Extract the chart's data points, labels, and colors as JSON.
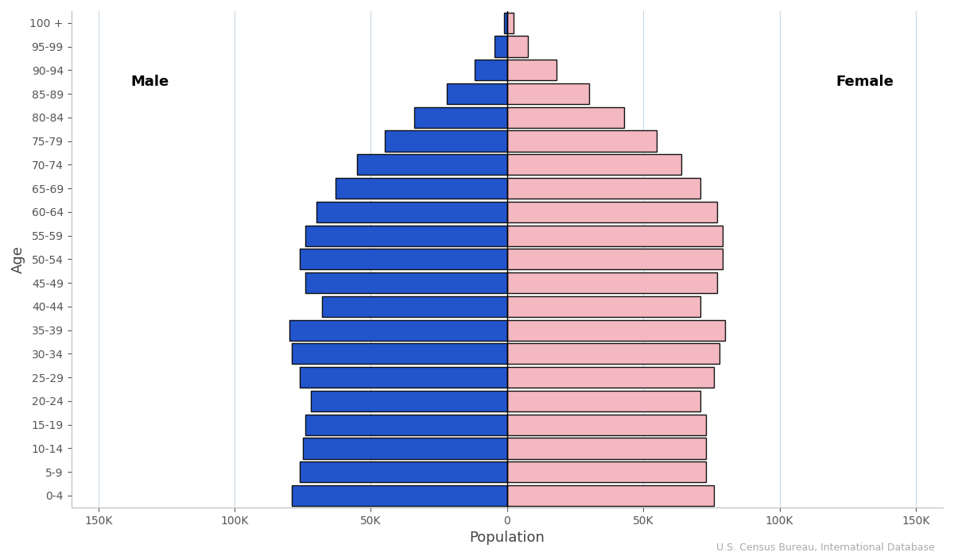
{
  "age_groups": [
    "0-4",
    "5-9",
    "10-14",
    "15-19",
    "20-24",
    "25-29",
    "30-34",
    "35-39",
    "40-44",
    "45-49",
    "50-54",
    "55-59",
    "60-64",
    "65-69",
    "70-74",
    "75-79",
    "80-84",
    "85-89",
    "90-94",
    "95-99",
    "100 +"
  ],
  "male": [
    79000,
    76000,
    75000,
    74000,
    72000,
    76000,
    79000,
    80000,
    68000,
    74000,
    76000,
    74000,
    70000,
    63000,
    55000,
    45000,
    34000,
    22000,
    12000,
    4500,
    1200
  ],
  "female": [
    76000,
    73000,
    73000,
    73000,
    71000,
    76000,
    78000,
    80000,
    71000,
    77000,
    79000,
    79000,
    77000,
    71000,
    64000,
    55000,
    43000,
    30000,
    18000,
    7500,
    2500
  ],
  "male_color": "#2255cc",
  "female_color": "#f4b8c0",
  "bar_edge_color": "#111111",
  "bar_linewidth": 1.0,
  "xlabel": "Population",
  "ylabel": "Age",
  "xlim": 160000,
  "male_label": "Male",
  "female_label": "Female",
  "source_text": "U.S. Census Bureau, International Database",
  "bg_color": "#ffffff",
  "grid_color": "#c8d8e8",
  "tick_label_color": "#555555",
  "axis_label_color": "#444444",
  "source_color": "#aaaaaa",
  "legend_fontsize": 13,
  "tick_fontsize": 10,
  "label_fontsize": 13
}
